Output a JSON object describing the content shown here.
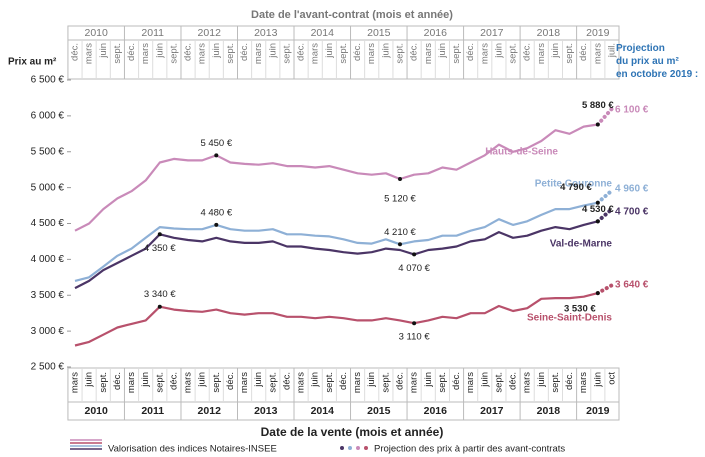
{
  "chart_data": {
    "type": "line",
    "top_axis": {
      "title": "Date de l'avant-contrat (mois et année)",
      "groups": [
        {
          "year": 2010,
          "months": [
            "déc.",
            "mars",
            "juin",
            "sept."
          ]
        },
        {
          "year": 2011,
          "months": [
            "déc.",
            "mars",
            "juin",
            "sept."
          ]
        },
        {
          "year": 2012,
          "months": [
            "déc.",
            "mars",
            "juin",
            "sept."
          ]
        },
        {
          "year": 2013,
          "months": [
            "déc.",
            "mars",
            "juin",
            "sept."
          ]
        },
        {
          "year": 2014,
          "months": [
            "déc.",
            "mars",
            "juin",
            "sept."
          ]
        },
        {
          "year": 2015,
          "months": [
            "déc.",
            "mars",
            "juin",
            "sept."
          ]
        },
        {
          "year": 2016,
          "months": [
            "déc.",
            "mars",
            "juin",
            "sept."
          ]
        },
        {
          "year": 2017,
          "months": [
            "déc.",
            "mars",
            "juin",
            "sept."
          ]
        },
        {
          "year": 2018,
          "months": [
            "déc.",
            "mars",
            "juin",
            "sept."
          ]
        },
        {
          "year": 2019,
          "months": [
            "déc.",
            "mars",
            "juil."
          ]
        }
      ]
    },
    "x_axis": {
      "title": "Date de la vente (mois et année)",
      "groups": [
        {
          "year": 2010,
          "months": [
            "mars",
            "juin",
            "sept.",
            "déc."
          ]
        },
        {
          "year": 2011,
          "months": [
            "mars",
            "juin",
            "sept.",
            "déc."
          ]
        },
        {
          "year": 2012,
          "months": [
            "mars",
            "juin",
            "sept.",
            "déc."
          ]
        },
        {
          "year": 2013,
          "months": [
            "mars",
            "juin",
            "sept.",
            "déc."
          ]
        },
        {
          "year": 2014,
          "months": [
            "mars",
            "juin",
            "sept.",
            "déc."
          ]
        },
        {
          "year": 2015,
          "months": [
            "mars",
            "juin",
            "sept.",
            "déc."
          ]
        },
        {
          "year": 2016,
          "months": [
            "mars",
            "juin",
            "sept.",
            "déc."
          ]
        },
        {
          "year": 2017,
          "months": [
            "mars",
            "juin",
            "sept.",
            "déc."
          ]
        },
        {
          "year": 2018,
          "months": [
            "mars",
            "juin",
            "sept.",
            "déc."
          ]
        },
        {
          "year": 2019,
          "months": [
            "mars",
            "juin",
            "oct"
          ]
        }
      ]
    },
    "ylabel": "Prix au m²",
    "ylim": [
      2500,
      6500
    ],
    "yticks": [
      {
        "value": 2500,
        "label": "2 500 €"
      },
      {
        "value": 3000,
        "label": "3 000 €"
      },
      {
        "value": 3500,
        "label": "3 500 €"
      },
      {
        "value": 4000,
        "label": "4 000 €"
      },
      {
        "value": 4500,
        "label": "4 500 €"
      },
      {
        "value": 5000,
        "label": "5 000 €"
      },
      {
        "value": 5500,
        "label": "5 500 €"
      },
      {
        "value": 6000,
        "label": "6 000 €"
      },
      {
        "value": 6500,
        "label": "6 500 €"
      }
    ],
    "projection_title": "Projection du prix au m² en octobre 2019 :",
    "legend": [
      "Valorisation des indices Notaires-INSEE",
      "Projection des prix à partir des avant-contrats"
    ],
    "series": [
      {
        "name": "Hauts-de-Seine",
        "color": "#c98ab9",
        "values": [
          4400,
          4500,
          4700,
          4850,
          4950,
          5100,
          5350,
          5400,
          5380,
          5380,
          5450,
          5350,
          5330,
          5320,
          5340,
          5300,
          5300,
          5280,
          5300,
          5250,
          5200,
          5180,
          5200,
          5120,
          5180,
          5200,
          5280,
          5250,
          5350,
          5450,
          5600,
          5500,
          5550,
          5650,
          5800,
          5750,
          5850,
          5880,
          null
        ],
        "value_labels": [
          null,
          null,
          null,
          null,
          null,
          null,
          null,
          null,
          null,
          null,
          "5 450 €",
          null,
          null,
          null,
          null,
          null,
          null,
          null,
          null,
          null,
          null,
          null,
          null,
          "5 120 €",
          null,
          null,
          null,
          null,
          null,
          null,
          null,
          null,
          null,
          null,
          null,
          null,
          null,
          "5 880 €",
          null
        ],
        "projection": [
          null,
          null,
          null,
          null,
          null,
          null,
          null,
          null,
          null,
          null,
          null,
          null,
          null,
          null,
          null,
          null,
          null,
          null,
          null,
          null,
          null,
          null,
          null,
          null,
          null,
          null,
          null,
          null,
          null,
          null,
          null,
          null,
          null,
          null,
          null,
          null,
          null,
          5880,
          6100
        ],
        "projection_labels": [
          null,
          null,
          null,
          null,
          null,
          null,
          null,
          null,
          null,
          null,
          null,
          null,
          null,
          null,
          null,
          null,
          null,
          null,
          null,
          null,
          null,
          null,
          null,
          null,
          null,
          null,
          null,
          null,
          null,
          null,
          null,
          null,
          null,
          null,
          null,
          null,
          null,
          null,
          "6 100 €"
        ]
      },
      {
        "name": "Petite Couronne",
        "color": "#8eb0d6",
        "values": [
          3700,
          3750,
          3900,
          4050,
          4150,
          4300,
          4450,
          4430,
          4420,
          4420,
          4480,
          4420,
          4400,
          4400,
          4420,
          4350,
          4350,
          4330,
          4320,
          4280,
          4230,
          4220,
          4280,
          4210,
          4250,
          4270,
          4330,
          4330,
          4400,
          4450,
          4560,
          4480,
          4530,
          4620,
          4700,
          4700,
          4750,
          4790,
          null
        ],
        "value_labels": [
          null,
          null,
          null,
          null,
          null,
          null,
          null,
          null,
          null,
          null,
          "4 480 €",
          null,
          null,
          null,
          null,
          null,
          null,
          null,
          null,
          null,
          null,
          null,
          null,
          "4 210 €",
          null,
          null,
          null,
          null,
          null,
          null,
          null,
          null,
          null,
          null,
          null,
          null,
          null,
          "4 790 €",
          null
        ],
        "projection": [
          null,
          null,
          null,
          null,
          null,
          null,
          null,
          null,
          null,
          null,
          null,
          null,
          null,
          null,
          null,
          null,
          null,
          null,
          null,
          null,
          null,
          null,
          null,
          null,
          null,
          null,
          null,
          null,
          null,
          null,
          null,
          null,
          null,
          null,
          null,
          null,
          null,
          4790,
          4960
        ],
        "projection_labels": [
          null,
          null,
          null,
          null,
          null,
          null,
          null,
          null,
          null,
          null,
          null,
          null,
          null,
          null,
          null,
          null,
          null,
          null,
          null,
          null,
          null,
          null,
          null,
          null,
          null,
          null,
          null,
          null,
          null,
          null,
          null,
          null,
          null,
          null,
          null,
          null,
          null,
          null,
          "4 960 €"
        ]
      },
      {
        "name": "Val-de-Marne",
        "color": "#4b3566",
        "values": [
          3600,
          3700,
          3850,
          3950,
          4050,
          4150,
          4350,
          4300,
          4270,
          4250,
          4300,
          4250,
          4230,
          4230,
          4250,
          4180,
          4180,
          4150,
          4130,
          4100,
          4080,
          4100,
          4150,
          4130,
          4070,
          4130,
          4150,
          4180,
          4250,
          4280,
          4380,
          4300,
          4330,
          4400,
          4450,
          4420,
          4480,
          4530,
          null
        ],
        "value_labels": [
          null,
          null,
          null,
          null,
          null,
          null,
          "4 350 €",
          null,
          null,
          null,
          null,
          null,
          null,
          null,
          null,
          null,
          null,
          null,
          null,
          null,
          null,
          null,
          null,
          null,
          "4 070 €",
          null,
          null,
          null,
          null,
          null,
          null,
          null,
          null,
          null,
          null,
          null,
          null,
          "4 530 €",
          null
        ],
        "projection": [
          null,
          null,
          null,
          null,
          null,
          null,
          null,
          null,
          null,
          null,
          null,
          null,
          null,
          null,
          null,
          null,
          null,
          null,
          null,
          null,
          null,
          null,
          null,
          null,
          null,
          null,
          null,
          null,
          null,
          null,
          null,
          null,
          null,
          null,
          null,
          null,
          null,
          4530,
          4700
        ],
        "projection_labels": [
          null,
          null,
          null,
          null,
          null,
          null,
          null,
          null,
          null,
          null,
          null,
          null,
          null,
          null,
          null,
          null,
          null,
          null,
          null,
          null,
          null,
          null,
          null,
          null,
          null,
          null,
          null,
          null,
          null,
          null,
          null,
          null,
          null,
          null,
          null,
          null,
          null,
          null,
          "4 700 €"
        ]
      },
      {
        "name": "Seine-Saint-Denis",
        "color": "#b8516c",
        "values": [
          2800,
          2850,
          2950,
          3050,
          3100,
          3150,
          3340,
          3300,
          3280,
          3270,
          3300,
          3250,
          3230,
          3250,
          3250,
          3200,
          3200,
          3180,
          3200,
          3180,
          3150,
          3150,
          3180,
          3150,
          3110,
          3150,
          3200,
          3180,
          3250,
          3250,
          3350,
          3280,
          3320,
          3450,
          3460,
          3460,
          3480,
          3530,
          null
        ],
        "value_labels": [
          null,
          null,
          null,
          null,
          null,
          null,
          "3 340 €",
          null,
          null,
          null,
          null,
          null,
          null,
          null,
          null,
          null,
          null,
          null,
          null,
          null,
          null,
          null,
          null,
          null,
          "3 110 €",
          null,
          null,
          null,
          null,
          null,
          null,
          null,
          null,
          null,
          null,
          null,
          null,
          "3 530 €",
          null
        ],
        "projection": [
          null,
          null,
          null,
          null,
          null,
          null,
          null,
          null,
          null,
          null,
          null,
          null,
          null,
          null,
          null,
          null,
          null,
          null,
          null,
          null,
          null,
          null,
          null,
          null,
          null,
          null,
          null,
          null,
          null,
          null,
          null,
          null,
          null,
          null,
          null,
          null,
          null,
          3530,
          3640
        ],
        "projection_labels": [
          null,
          null,
          null,
          null,
          null,
          null,
          null,
          null,
          null,
          null,
          null,
          null,
          null,
          null,
          null,
          null,
          null,
          null,
          null,
          null,
          null,
          null,
          null,
          null,
          null,
          null,
          null,
          null,
          null,
          null,
          null,
          null,
          null,
          null,
          null,
          null,
          null,
          null,
          "3 640 €"
        ]
      }
    ]
  }
}
